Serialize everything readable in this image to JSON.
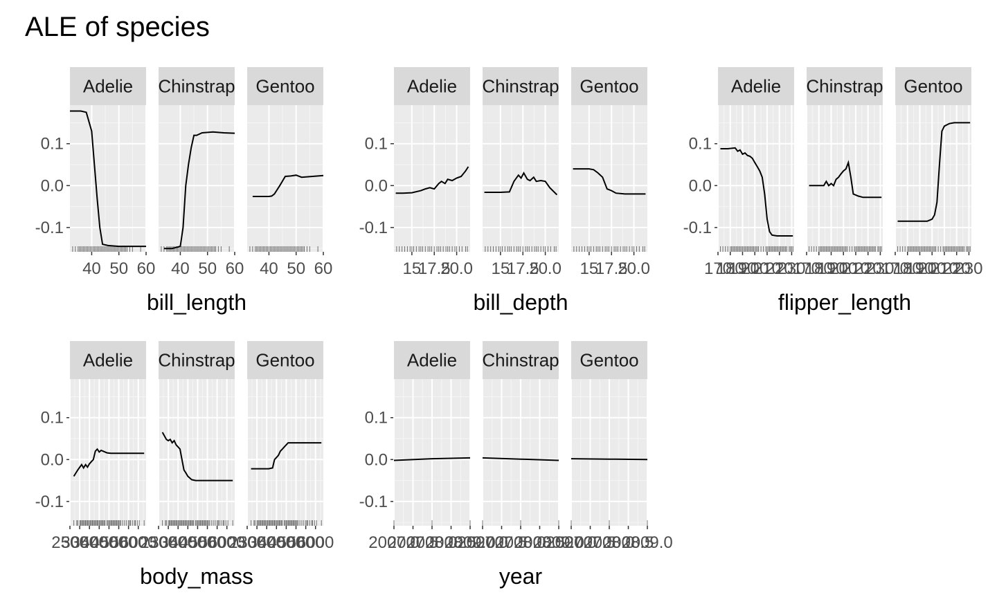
{
  "title": "ALE of species",
  "panel_labels": [
    "Adelie",
    "Chinstrap",
    "Gentoo"
  ],
  "colors": {
    "panel_bg": "#ebebeb",
    "grid_major": "#ffffff",
    "grid_minor": "#f5f5f5",
    "strip_bg": "#d9d9d9",
    "line": "#000000",
    "rug": "#000000",
    "tick_text": "#4d4d4d"
  },
  "chart_data": [
    {
      "type": "line",
      "feature": "bill_length",
      "xlabel": "bill_length",
      "xlim": [
        32,
        60
      ],
      "ylim": [
        -0.158,
        0.192
      ],
      "yticks": [
        -0.1,
        0.0,
        0.1
      ],
      "ytick_labels": [
        "-0.1",
        "0.0",
        "0.1"
      ],
      "xticks": [
        40,
        50,
        60
      ],
      "xtick_labels": [
        "40",
        "50",
        "60"
      ],
      "series": [
        {
          "name": "Adelie",
          "x": [
            32,
            36,
            38,
            40,
            42,
            43,
            44,
            46,
            50,
            55,
            60
          ],
          "y": [
            0.178,
            0.178,
            0.175,
            0.13,
            -0.03,
            -0.1,
            -0.14,
            -0.143,
            -0.145,
            -0.145,
            -0.145
          ]
        },
        {
          "name": "Chinstrap",
          "x": [
            34,
            37,
            40,
            41,
            42,
            43,
            44,
            45,
            46,
            48,
            50,
            52,
            56,
            60
          ],
          "y": [
            -0.15,
            -0.15,
            -0.145,
            -0.1,
            0.0,
            0.05,
            0.09,
            0.12,
            0.12,
            0.126,
            0.127,
            0.128,
            0.126,
            0.125
          ]
        },
        {
          "name": "Gentoo",
          "x": [
            34,
            38,
            40,
            41,
            42,
            44,
            46,
            48,
            50,
            52,
            56,
            60
          ],
          "y": [
            -0.026,
            -0.026,
            -0.026,
            -0.025,
            -0.02,
            0.0,
            0.022,
            0.023,
            0.025,
            0.02,
            0.022,
            0.024
          ]
        }
      ],
      "rug_x": [
        33,
        34,
        35,
        35.5,
        36,
        36.5,
        37,
        37.5,
        38,
        38.5,
        39,
        39.5,
        40,
        40.5,
        41,
        41.5,
        42,
        42.5,
        43,
        43.5,
        44,
        44.5,
        45,
        45.5,
        46,
        46.5,
        47,
        47.5,
        48,
        48.5,
        49,
        49.5,
        50,
        50.5,
        51,
        51.5,
        52,
        52.5,
        53,
        54,
        55,
        58
      ]
    },
    {
      "type": "line",
      "feature": "bill_depth",
      "xlabel": "bill_depth",
      "xlim": [
        13,
        21.5
      ],
      "ylim": [
        -0.158,
        0.192
      ],
      "yticks": [
        -0.1,
        0.0,
        0.1
      ],
      "ytick_labels": [
        "-0.1",
        "0.0",
        "0.1"
      ],
      "xticks": [
        15,
        17.5,
        20
      ],
      "xtick_labels": [
        "15",
        "17.5",
        "20.0"
      ],
      "series": [
        {
          "name": "Adelie",
          "x": [
            13.2,
            14,
            15,
            16,
            16.5,
            17,
            17.5,
            18,
            18.3,
            18.7,
            19,
            19.5,
            20,
            20.5,
            21,
            21.3
          ],
          "y": [
            -0.018,
            -0.018,
            -0.017,
            -0.012,
            -0.008,
            -0.005,
            -0.008,
            0.005,
            0.01,
            0.005,
            0.015,
            0.012,
            0.018,
            0.022,
            0.035,
            0.045
          ]
        },
        {
          "name": "Chinstrap",
          "x": [
            13.2,
            14,
            15,
            16,
            16.5,
            17,
            17.3,
            17.6,
            18,
            18.3,
            18.7,
            19,
            19.5,
            20,
            20.5,
            21.3
          ],
          "y": [
            -0.016,
            -0.016,
            -0.016,
            -0.015,
            0.01,
            0.025,
            0.018,
            0.03,
            0.015,
            0.012,
            0.02,
            0.01,
            0.012,
            0.01,
            -0.005,
            -0.022
          ]
        },
        {
          "name": "Gentoo",
          "x": [
            13.2,
            14,
            15,
            15.5,
            16,
            16.5,
            17,
            17.5,
            18,
            19,
            20,
            21.3
          ],
          "y": [
            0.04,
            0.04,
            0.04,
            0.038,
            0.03,
            0.02,
            -0.008,
            -0.012,
            -0.018,
            -0.02,
            -0.02,
            -0.02
          ]
        }
      ],
      "rug_x": [
        13.3,
        13.6,
        13.9,
        14.2,
        14.5,
        14.8,
        15.0,
        15.2,
        15.5,
        15.8,
        16.0,
        16.2,
        16.5,
        16.8,
        17.0,
        17.2,
        17.5,
        17.8,
        18.0,
        18.2,
        18.5,
        18.8,
        19.0,
        19.2,
        19.5,
        19.8,
        20.0,
        20.3,
        20.6,
        21.0,
        21.2
      ]
    },
    {
      "type": "line",
      "feature": "flipper_length",
      "xlabel": "flipper_length",
      "xlim": [
        170,
        232
      ],
      "ylim": [
        -0.158,
        0.192
      ],
      "yticks": [
        -0.1,
        0.0,
        0.1
      ],
      "ytick_labels": [
        "-0.1",
        "0.0",
        "0.1"
      ],
      "xticks": [
        170,
        180,
        190,
        200,
        210,
        220,
        230
      ],
      "xtick_labels": [
        "170",
        "180",
        "190",
        "200",
        "210",
        "220",
        "230"
      ],
      "series": [
        {
          "name": "Adelie",
          "x": [
            172,
            178,
            184,
            186,
            188,
            190,
            192,
            194,
            196,
            198,
            200,
            202,
            204,
            206,
            208,
            210,
            212,
            214,
            218,
            222,
            226,
            231
          ],
          "y": [
            0.088,
            0.088,
            0.09,
            0.082,
            0.085,
            0.075,
            0.078,
            0.072,
            0.07,
            0.065,
            0.055,
            0.045,
            0.035,
            0.02,
            -0.02,
            -0.08,
            -0.11,
            -0.118,
            -0.12,
            -0.12,
            -0.12,
            -0.12
          ]
        },
        {
          "name": "Chinstrap",
          "x": [
            172,
            178,
            184,
            186,
            188,
            190,
            192,
            194,
            196,
            198,
            200,
            202,
            204,
            206,
            208,
            212,
            216,
            220,
            226,
            231
          ],
          "y": [
            0.0,
            0.0,
            0.0,
            0.01,
            0.0,
            0.005,
            0.0,
            0.015,
            0.02,
            0.028,
            0.035,
            0.04,
            0.055,
            0.02,
            -0.02,
            -0.025,
            -0.028,
            -0.028,
            -0.028,
            -0.028
          ]
        },
        {
          "name": "Gentoo",
          "x": [
            172,
            178,
            184,
            190,
            196,
            200,
            202,
            204,
            206,
            208,
            210,
            212,
            214,
            218,
            222,
            226,
            231
          ],
          "y": [
            -0.085,
            -0.085,
            -0.085,
            -0.085,
            -0.085,
            -0.08,
            -0.07,
            -0.04,
            0.05,
            0.13,
            0.142,
            0.145,
            0.148,
            0.15,
            0.15,
            0.15,
            0.15
          ]
        }
      ],
      "rug_x": [
        172,
        174,
        176,
        178,
        180,
        181,
        182,
        183,
        184,
        185,
        186,
        187,
        188,
        189,
        190,
        191,
        192,
        193,
        194,
        195,
        196,
        197,
        198,
        199,
        200,
        201,
        202,
        203,
        205,
        207,
        209,
        210,
        211,
        212,
        213,
        214,
        215,
        216,
        217,
        218,
        219,
        220,
        221,
        222,
        223,
        224,
        225,
        226,
        228,
        229,
        230,
        231
      ]
    },
    {
      "type": "line",
      "feature": "body_mass",
      "xlabel": "body_mass",
      "xlim": [
        2500,
        6400
      ],
      "ylim": [
        -0.158,
        0.192
      ],
      "yticks": [
        -0.1,
        0.0,
        0.1
      ],
      "ytick_labels": [
        "-0.1",
        "0.0",
        "0.1"
      ],
      "xticks": [
        2500,
        3000,
        3500,
        4000,
        4500,
        5000,
        5500,
        6000,
        6500
      ],
      "xtick_labels": [
        "2500",
        "3000",
        "3500",
        "4000",
        "4500",
        "5000",
        "5500",
        "6000",
        "6500"
      ],
      "series": [
        {
          "name": "Adelie",
          "x": [
            2700,
            2900,
            3100,
            3200,
            3300,
            3400,
            3500,
            3600,
            3700,
            3800,
            3900,
            4000,
            4100,
            4200,
            4300,
            4400,
            4600,
            5000,
            5500,
            6300
          ],
          "y": [
            -0.04,
            -0.025,
            -0.012,
            -0.02,
            -0.012,
            -0.018,
            -0.01,
            -0.005,
            0.0,
            0.02,
            0.025,
            0.018,
            0.022,
            0.02,
            0.018,
            0.016,
            0.015,
            0.015,
            0.015,
            0.015
          ]
        },
        {
          "name": "Chinstrap",
          "x": [
            2700,
            2900,
            3000,
            3100,
            3200,
            3300,
            3400,
            3500,
            3600,
            3700,
            3800,
            3900,
            4000,
            4200,
            4400,
            4800,
            5200,
            5600,
            6300
          ],
          "y": [
            0.065,
            0.048,
            0.045,
            0.048,
            0.04,
            0.045,
            0.035,
            0.03,
            0.025,
            0.0,
            -0.025,
            -0.032,
            -0.04,
            -0.048,
            -0.05,
            -0.05,
            -0.05,
            -0.05,
            -0.05
          ]
        },
        {
          "name": "Gentoo",
          "x": [
            2700,
            3000,
            3400,
            3600,
            3800,
            3900,
            4000,
            4100,
            4200,
            4300,
            4400,
            4500,
            4600,
            4800,
            5000,
            5500,
            6300
          ],
          "y": [
            -0.022,
            -0.022,
            -0.022,
            -0.022,
            -0.02,
            0.0,
            0.005,
            0.01,
            0.02,
            0.025,
            0.03,
            0.035,
            0.04,
            0.04,
            0.04,
            0.04,
            0.04
          ]
        }
      ],
      "rug_x": [
        2700,
        2850,
        2900,
        3000,
        3050,
        3100,
        3150,
        3200,
        3250,
        3300,
        3350,
        3400,
        3450,
        3500,
        3550,
        3600,
        3650,
        3700,
        3750,
        3800,
        3850,
        3900,
        3950,
        4000,
        4050,
        4100,
        4150,
        4200,
        4250,
        4300,
        4400,
        4450,
        4500,
        4550,
        4600,
        4650,
        4700,
        4750,
        4800,
        4850,
        4900,
        4950,
        5000,
        5050,
        5100,
        5200,
        5300,
        5400,
        5500,
        5550,
        5600,
        5700,
        5800,
        5850,
        5950,
        6050,
        6300
      ]
    },
    {
      "type": "line",
      "feature": "year",
      "xlabel": "year",
      "xlim": [
        2007,
        2009
      ],
      "ylim": [
        -0.158,
        0.192
      ],
      "yticks": [
        -0.1,
        0.0,
        0.1
      ],
      "ytick_labels": [
        "-0.1",
        "0.0",
        "0.1"
      ],
      "xticks": [
        2007,
        2007.5,
        2008,
        2008.5,
        2009
      ],
      "xtick_labels": [
        "2007.0",
        "2007.5",
        "2008.0",
        "2008.5",
        "2009.0"
      ],
      "series": [
        {
          "name": "Adelie",
          "x": [
            2007,
            2008,
            2009
          ],
          "y": [
            -0.002,
            0.002,
            0.004
          ]
        },
        {
          "name": "Chinstrap",
          "x": [
            2007,
            2008,
            2009
          ],
          "y": [
            0.004,
            0.001,
            -0.002
          ]
        },
        {
          "name": "Gentoo",
          "x": [
            2007,
            2008,
            2009
          ],
          "y": [
            0.002,
            0.001,
            0.0
          ]
        }
      ],
      "rug_x": [
        2007,
        2008,
        2009
      ]
    }
  ]
}
